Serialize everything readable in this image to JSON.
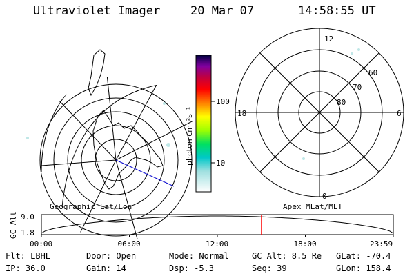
{
  "header": {
    "title": "Ultraviolet Imager",
    "date": "20 Mar 07",
    "time": "14:58:55 UT"
  },
  "left_panel": {
    "caption": "Geographic Lat/Lon"
  },
  "right_panel": {
    "caption": "Apex MLat/MLT",
    "mlt_labels": [
      "12",
      "18",
      "6",
      "0"
    ],
    "mlat_labels": [
      "60",
      "70",
      "80"
    ]
  },
  "colorbar": {
    "unit_label": "photon cm⁻²s⁻¹",
    "ticks": [
      "100",
      "10"
    ]
  },
  "alt_strip": {
    "axis_label": "GC Alt",
    "ymax_label": "9.0",
    "ymin_label": "1.8",
    "time_ticks": [
      "00:00",
      "06:00",
      "12:00",
      "18:00",
      "23:59"
    ],
    "current_time_fraction": 0.625
  },
  "info": {
    "row1": {
      "filter": "Flt: LBHL",
      "door": "Door: Open",
      "mode": "Mode: Normal",
      "gc_alt": "GC Alt: 8.5 Re",
      "glat": "GLat: -70.4"
    },
    "row2": {
      "ip": "IP: 36.0",
      "gain": "Gain: 14",
      "dsp": "Dsp:   -5.3",
      "seq": "Seq: 39",
      "glon": "GLon: 158.4"
    }
  },
  "colors": {
    "cursor": "#ff0000",
    "track": "#0000cc",
    "faint_emission": "#bfe7e7"
  }
}
